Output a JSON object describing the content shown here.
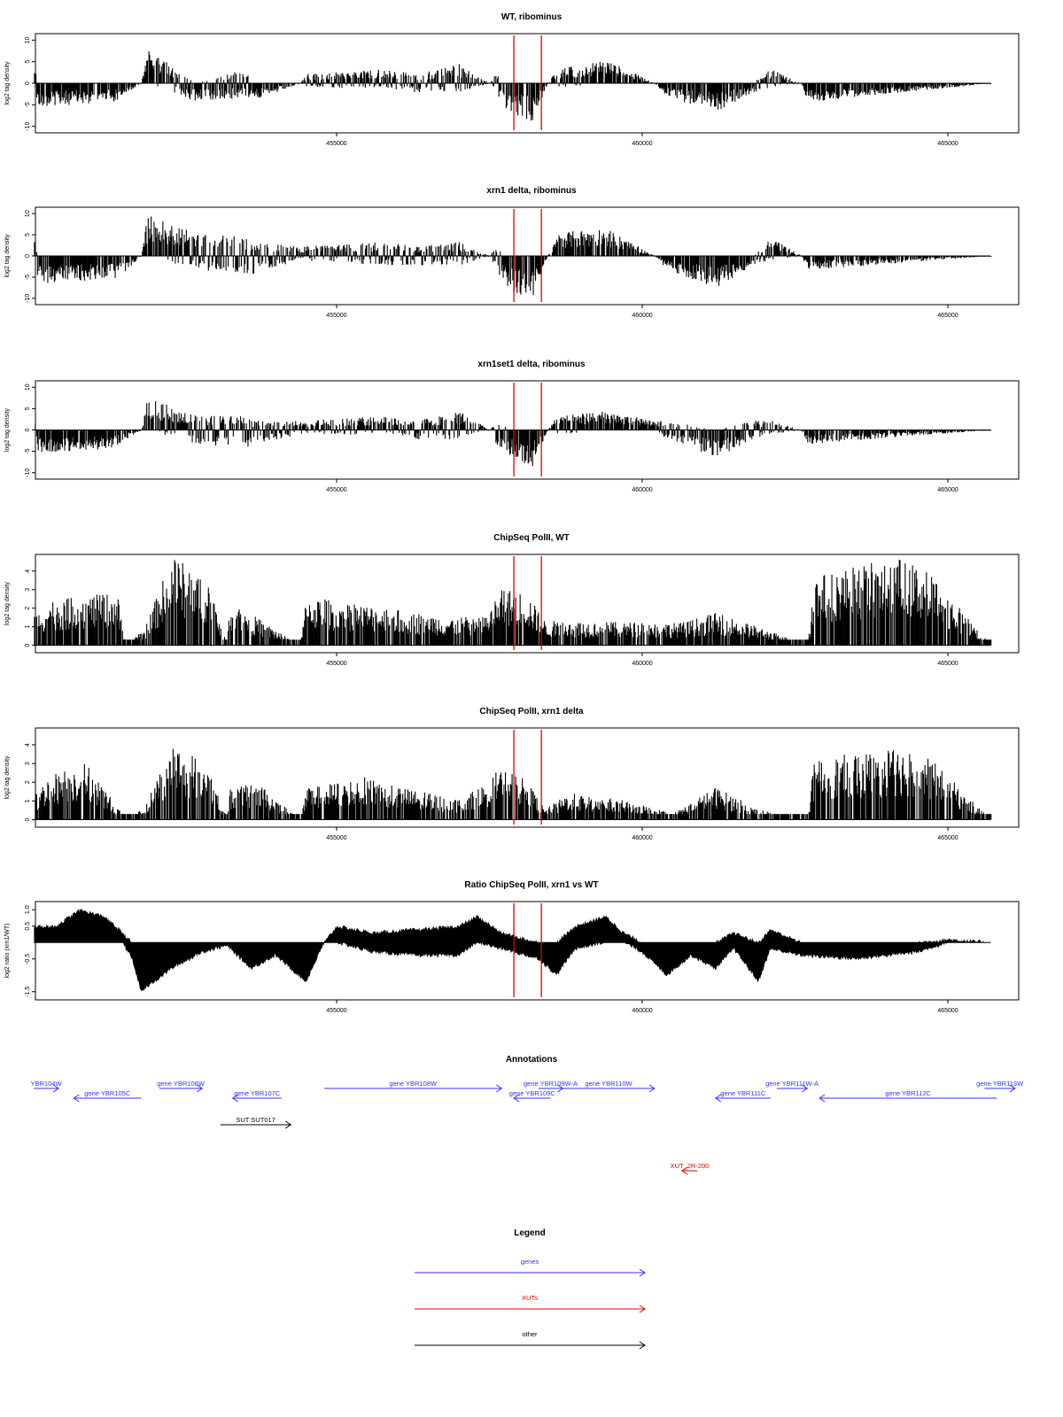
{
  "colors": {
    "gene": "#3333ff",
    "xut": "#e00000",
    "other": "#000000",
    "marker": "#e00000",
    "bar": "#000000"
  },
  "chart_data": [
    {
      "type": "bar",
      "title": "WT, ribominus",
      "ylabel": "log2 tag density",
      "ylim": [
        -11.5,
        11.5
      ],
      "yticks": [
        10,
        5,
        0,
        -5,
        -10
      ],
      "ytick_labels": [
        "10",
        "5",
        "0",
        "-5",
        "-10"
      ],
      "xlim": [
        450000,
        466100
      ],
      "xticks": [
        455000,
        460000,
        465000
      ],
      "xtick_labels": [
        "455000",
        "460000",
        "465000"
      ],
      "markers": [
        457900,
        458350
      ],
      "profile": [
        [
          450050,
          4,
          0
        ],
        [
          450100,
          0,
          -5
        ],
        [
          451350,
          0,
          -4
        ],
        [
          451800,
          0,
          0
        ],
        [
          451900,
          8,
          0
        ],
        [
          452700,
          0,
          -4
        ],
        [
          453500,
          3,
          -3
        ],
        [
          453600,
          0,
          -4
        ],
        [
          454400,
          0,
          0
        ],
        [
          454500,
          2,
          -1
        ],
        [
          455800,
          3,
          -1
        ],
        [
          456300,
          2,
          -2
        ],
        [
          457000,
          4,
          -2
        ],
        [
          457500,
          0,
          0
        ],
        [
          457600,
          2,
          -2
        ],
        [
          457850,
          0,
          -7
        ],
        [
          458200,
          0,
          -8
        ],
        [
          458450,
          0,
          0
        ],
        [
          458600,
          3,
          -1
        ],
        [
          459400,
          5,
          0
        ],
        [
          460200,
          0,
          0
        ],
        [
          460400,
          0,
          -3
        ],
        [
          461200,
          0,
          -6
        ],
        [
          461800,
          0,
          -2
        ],
        [
          462100,
          3,
          -1
        ],
        [
          462600,
          0,
          0
        ],
        [
          462700,
          0,
          -4
        ],
        [
          465700,
          0,
          0
        ]
      ]
    },
    {
      "type": "bar",
      "title": "xrn1 delta, ribominus",
      "ylabel": "log2 tag density",
      "ylim": [
        -11.5,
        11.5
      ],
      "yticks": [
        10,
        5,
        0,
        -5,
        -10
      ],
      "ytick_labels": [
        "10",
        "5",
        "0",
        "-5",
        "-10"
      ],
      "xlim": [
        450000,
        466100
      ],
      "xticks": [
        455000,
        460000,
        465000
      ],
      "xtick_labels": [
        "455000",
        "460000",
        "465000"
      ],
      "markers": [
        457900,
        458350
      ],
      "profile": [
        [
          450050,
          4,
          0
        ],
        [
          450100,
          0,
          -6
        ],
        [
          451400,
          0,
          -5
        ],
        [
          451800,
          0,
          0
        ],
        [
          451900,
          9,
          0
        ],
        [
          452700,
          5,
          -3
        ],
        [
          453500,
          4,
          -4
        ],
        [
          453600,
          3,
          -4
        ],
        [
          454400,
          2,
          -1
        ],
        [
          455800,
          3,
          -2
        ],
        [
          456300,
          2,
          -2
        ],
        [
          457000,
          3,
          -2
        ],
        [
          457500,
          0,
          0
        ],
        [
          457600,
          2,
          -3
        ],
        [
          457850,
          0,
          -8
        ],
        [
          458200,
          0,
          -9
        ],
        [
          458450,
          0,
          0
        ],
        [
          458600,
          5,
          0
        ],
        [
          459400,
          6,
          0
        ],
        [
          460200,
          0,
          0
        ],
        [
          460400,
          0,
          -3
        ],
        [
          461200,
          0,
          -7
        ],
        [
          461800,
          0,
          -2
        ],
        [
          462100,
          4,
          -1
        ],
        [
          462600,
          0,
          0
        ],
        [
          462700,
          0,
          -3
        ],
        [
          465700,
          0,
          0
        ]
      ]
    },
    {
      "type": "bar",
      "title": "xrn1set1 delta, ribominus",
      "ylabel": "log2 tag density",
      "ylim": [
        -11.5,
        11.5
      ],
      "yticks": [
        10,
        5,
        0,
        -5,
        -10
      ],
      "ytick_labels": [
        "10",
        "5",
        "0",
        "-5",
        "-10"
      ],
      "xlim": [
        450000,
        466100
      ],
      "xticks": [
        455000,
        460000,
        465000
      ],
      "xtick_labels": [
        "455000",
        "460000",
        "465000"
      ],
      "markers": [
        457900,
        458350
      ],
      "profile": [
        [
          450050,
          3,
          0
        ],
        [
          450100,
          0,
          -5
        ],
        [
          451300,
          0,
          -4
        ],
        [
          451800,
          0,
          0
        ],
        [
          451900,
          7,
          0
        ],
        [
          452700,
          3,
          -3
        ],
        [
          453500,
          3,
          -4
        ],
        [
          453600,
          2,
          -3
        ],
        [
          454400,
          2,
          -1
        ],
        [
          455800,
          3,
          -1
        ],
        [
          456300,
          2,
          -2
        ],
        [
          457000,
          4,
          -2
        ],
        [
          457500,
          0,
          0
        ],
        [
          457600,
          2,
          -3
        ],
        [
          457850,
          0,
          -6
        ],
        [
          458200,
          0,
          -8
        ],
        [
          458450,
          0,
          0
        ],
        [
          458600,
          3,
          -1
        ],
        [
          459400,
          4,
          0
        ],
        [
          460200,
          2,
          0
        ],
        [
          460400,
          2,
          -2
        ],
        [
          461200,
          0,
          -6
        ],
        [
          461800,
          2,
          -2
        ],
        [
          462100,
          2,
          -1
        ],
        [
          462600,
          0,
          0
        ],
        [
          462700,
          0,
          -3
        ],
        [
          465700,
          0,
          0
        ]
      ]
    },
    {
      "type": "bar",
      "title": "ChipSeq PolII, WT",
      "ylabel": "log2 tag density",
      "ylim": [
        -0.4,
        4.9
      ],
      "yticks": [
        0,
        1,
        2,
        3,
        4
      ],
      "ytick_labels": [
        "0",
        "1",
        "2",
        "3",
        "4"
      ],
      "xlim": [
        450000,
        466100
      ],
      "xticks": [
        455000,
        460000,
        465000
      ],
      "xtick_labels": [
        "455000",
        "460000",
        "465000"
      ],
      "markers": [
        457900,
        458350
      ],
      "profile": [
        [
          450050,
          1.5,
          0
        ],
        [
          450300,
          2.2,
          0
        ],
        [
          451400,
          2.6,
          0
        ],
        [
          451550,
          0,
          0
        ],
        [
          451850,
          0.8,
          0
        ],
        [
          452300,
          4.4,
          0
        ],
        [
          452900,
          3.3,
          0
        ],
        [
          453200,
          0,
          0
        ],
        [
          453250,
          2.2,
          0
        ],
        [
          454400,
          0,
          0
        ],
        [
          454500,
          2.4,
          0
        ],
        [
          456800,
          1.4,
          0
        ],
        [
          457400,
          1.4,
          0
        ],
        [
          457700,
          2.8,
          0
        ],
        [
          458100,
          2.6,
          0
        ],
        [
          458400,
          1.2,
          0
        ],
        [
          460600,
          1.1,
          0
        ],
        [
          461200,
          1.6,
          0
        ],
        [
          461900,
          0.9,
          0
        ],
        [
          462700,
          0,
          0
        ],
        [
          462800,
          3.4,
          0
        ],
        [
          463500,
          3.9,
          0
        ],
        [
          464200,
          4.3,
          0
        ],
        [
          464700,
          3.6,
          0
        ],
        [
          465700,
          0,
          0
        ]
      ]
    },
    {
      "type": "bar",
      "title": "ChipSeq PolII, xrn1 delta",
      "ylabel": "log2 tag density",
      "ylim": [
        -0.4,
        4.9
      ],
      "yticks": [
        0,
        1,
        2,
        3,
        4
      ],
      "ytick_labels": [
        "0",
        "1",
        "2",
        "3",
        "4"
      ],
      "xlim": [
        450000,
        466100
      ],
      "xticks": [
        455000,
        460000,
        465000
      ],
      "xtick_labels": [
        "455000",
        "460000",
        "465000"
      ],
      "markers": [
        457900,
        458350
      ],
      "profile": [
        [
          450050,
          1.2,
          0
        ],
        [
          450300,
          2.2,
          0
        ],
        [
          450900,
          2.8,
          0
        ],
        [
          451550,
          0,
          0
        ],
        [
          451850,
          0.6,
          0
        ],
        [
          452300,
          3.8,
          0
        ],
        [
          452900,
          2.6,
          0
        ],
        [
          453200,
          0,
          0
        ],
        [
          453250,
          1.5,
          0
        ],
        [
          453700,
          1.8,
          0
        ],
        [
          454400,
          0,
          0
        ],
        [
          454500,
          1.5,
          0
        ],
        [
          455400,
          2.1,
          0
        ],
        [
          456300,
          1.4,
          0
        ],
        [
          457000,
          1.0,
          0
        ],
        [
          457400,
          1.7,
          0
        ],
        [
          457700,
          2.6,
          0
        ],
        [
          458100,
          1.9,
          0
        ],
        [
          458400,
          0.5,
          0
        ],
        [
          458800,
          1.3,
          0
        ],
        [
          459800,
          0.9,
          0
        ],
        [
          460500,
          0.3,
          0
        ],
        [
          461200,
          1.6,
          0
        ],
        [
          461900,
          0.5,
          0
        ],
        [
          462700,
          0,
          0
        ],
        [
          462800,
          2.8,
          0
        ],
        [
          463500,
          3.3,
          0
        ],
        [
          464200,
          3.5,
          0
        ],
        [
          464700,
          3.0,
          0
        ],
        [
          465700,
          0,
          0
        ]
      ]
    },
    {
      "type": "area",
      "title": "Ratio ChipSeq PolII, xrn1 vs WT",
      "ylabel": "log2 ratio (xrn1/WT)",
      "ylim": [
        -1.75,
        1.25
      ],
      "yticks": [
        1.0,
        0.5,
        -0.5,
        -1.5
      ],
      "ytick_labels": [
        "1.0",
        "0.5",
        "-0.5",
        "-1.5"
      ],
      "xlim": [
        450000,
        466100
      ],
      "xticks": [
        455000,
        460000,
        465000
      ],
      "xtick_labels": [
        "455000",
        "460000",
        "465000"
      ],
      "markers": [
        457900,
        458350
      ],
      "profile": [
        [
          450050,
          0.5,
          0
        ],
        [
          450400,
          0.5,
          0
        ],
        [
          450800,
          1.0,
          0
        ],
        [
          451200,
          0.8,
          0
        ],
        [
          451500,
          0.3,
          0
        ],
        [
          451650,
          0,
          -0.5
        ],
        [
          451800,
          0,
          -1.5
        ],
        [
          452300,
          0,
          -0.8
        ],
        [
          452800,
          0,
          -0.3
        ],
        [
          453200,
          0,
          -0.1
        ],
        [
          453600,
          0,
          -0.8
        ],
        [
          454000,
          0,
          -0.4
        ],
        [
          454500,
          0,
          -1.2
        ],
        [
          454800,
          0,
          0
        ],
        [
          455000,
          0.5,
          0
        ],
        [
          455600,
          0.3,
          -0.3
        ],
        [
          456300,
          0.4,
          -0.4
        ],
        [
          457000,
          0.5,
          -0.4
        ],
        [
          457300,
          0.8,
          0
        ],
        [
          457700,
          0.3,
          -0.2
        ],
        [
          458300,
          0,
          -0.5
        ],
        [
          458600,
          0,
          -1.0
        ],
        [
          458900,
          0.5,
          -0.2
        ],
        [
          459400,
          0.8,
          0
        ],
        [
          459700,
          0.3,
          0
        ],
        [
          460000,
          0,
          -0.3
        ],
        [
          460400,
          0,
          -1.0
        ],
        [
          460800,
          0,
          -0.4
        ],
        [
          461200,
          0,
          -0.8
        ],
        [
          461500,
          0.3,
          -0.2
        ],
        [
          461900,
          0,
          -1.2
        ],
        [
          462100,
          0.4,
          -0.2
        ],
        [
          462600,
          0,
          -0.4
        ],
        [
          463500,
          0,
          -0.5
        ],
        [
          464500,
          0,
          -0.3
        ],
        [
          465000,
          0.1,
          0
        ],
        [
          465700,
          0,
          0
        ]
      ]
    }
  ],
  "annotations": {
    "title": "Annotations",
    "xlim": [
      450000,
      466100
    ],
    "features": [
      {
        "label": "YBR104W",
        "kind": "gene",
        "strand": "+",
        "start": 449850,
        "end": 450450,
        "row": 0
      },
      {
        "label": "gene YBR105C",
        "kind": "gene",
        "strand": "-",
        "start": 450700,
        "end": 451800,
        "row": 1
      },
      {
        "label": "gene YBR106W",
        "kind": "gene",
        "strand": "+",
        "start": 452100,
        "end": 452800,
        "row": 0
      },
      {
        "label": "gene YBR107C",
        "kind": "gene",
        "strand": "-",
        "start": 453300,
        "end": 454100,
        "row": 1
      },
      {
        "label": "gene YBR108W",
        "kind": "gene",
        "strand": "+",
        "start": 454800,
        "end": 457700,
        "row": 0
      },
      {
        "label": "gene YBR109C",
        "kind": "gene",
        "strand": "-",
        "start": 457900,
        "end": 458500,
        "row": 1
      },
      {
        "label": "gene YBR109W-A",
        "kind": "gene",
        "strand": "+",
        "start": 458300,
        "end": 458700,
        "row": 0
      },
      {
        "label": "gene YBR110W",
        "kind": "gene",
        "strand": "+",
        "start": 458700,
        "end": 460200,
        "row": 0
      },
      {
        "label": "gene YBR111C",
        "kind": "gene",
        "strand": "-",
        "start": 461200,
        "end": 462100,
        "row": 1
      },
      {
        "label": "gene YBR111W-A",
        "kind": "gene",
        "strand": "+",
        "start": 462200,
        "end": 462700,
        "row": 0
      },
      {
        "label": "gene YBR112C",
        "kind": "gene",
        "strand": "-",
        "start": 462900,
        "end": 465800,
        "row": 1
      },
      {
        "label": "gene YBR113W",
        "kind": "gene",
        "strand": "+",
        "start": 465600,
        "end": 466100,
        "row": 0
      },
      {
        "label": "SUT SUT017",
        "kind": "other",
        "strand": "+",
        "start": 453100,
        "end": 454250,
        "row": 3
      },
      {
        "label": "XUT_2R-200",
        "kind": "xut",
        "strand": "-",
        "start": 460650,
        "end": 460900,
        "row": 7
      }
    ]
  },
  "legend": {
    "title": "Legend",
    "items": [
      {
        "label": "genes",
        "kind": "gene"
      },
      {
        "label": "XUTs",
        "kind": "xut"
      },
      {
        "label": "other",
        "kind": "other"
      }
    ]
  }
}
